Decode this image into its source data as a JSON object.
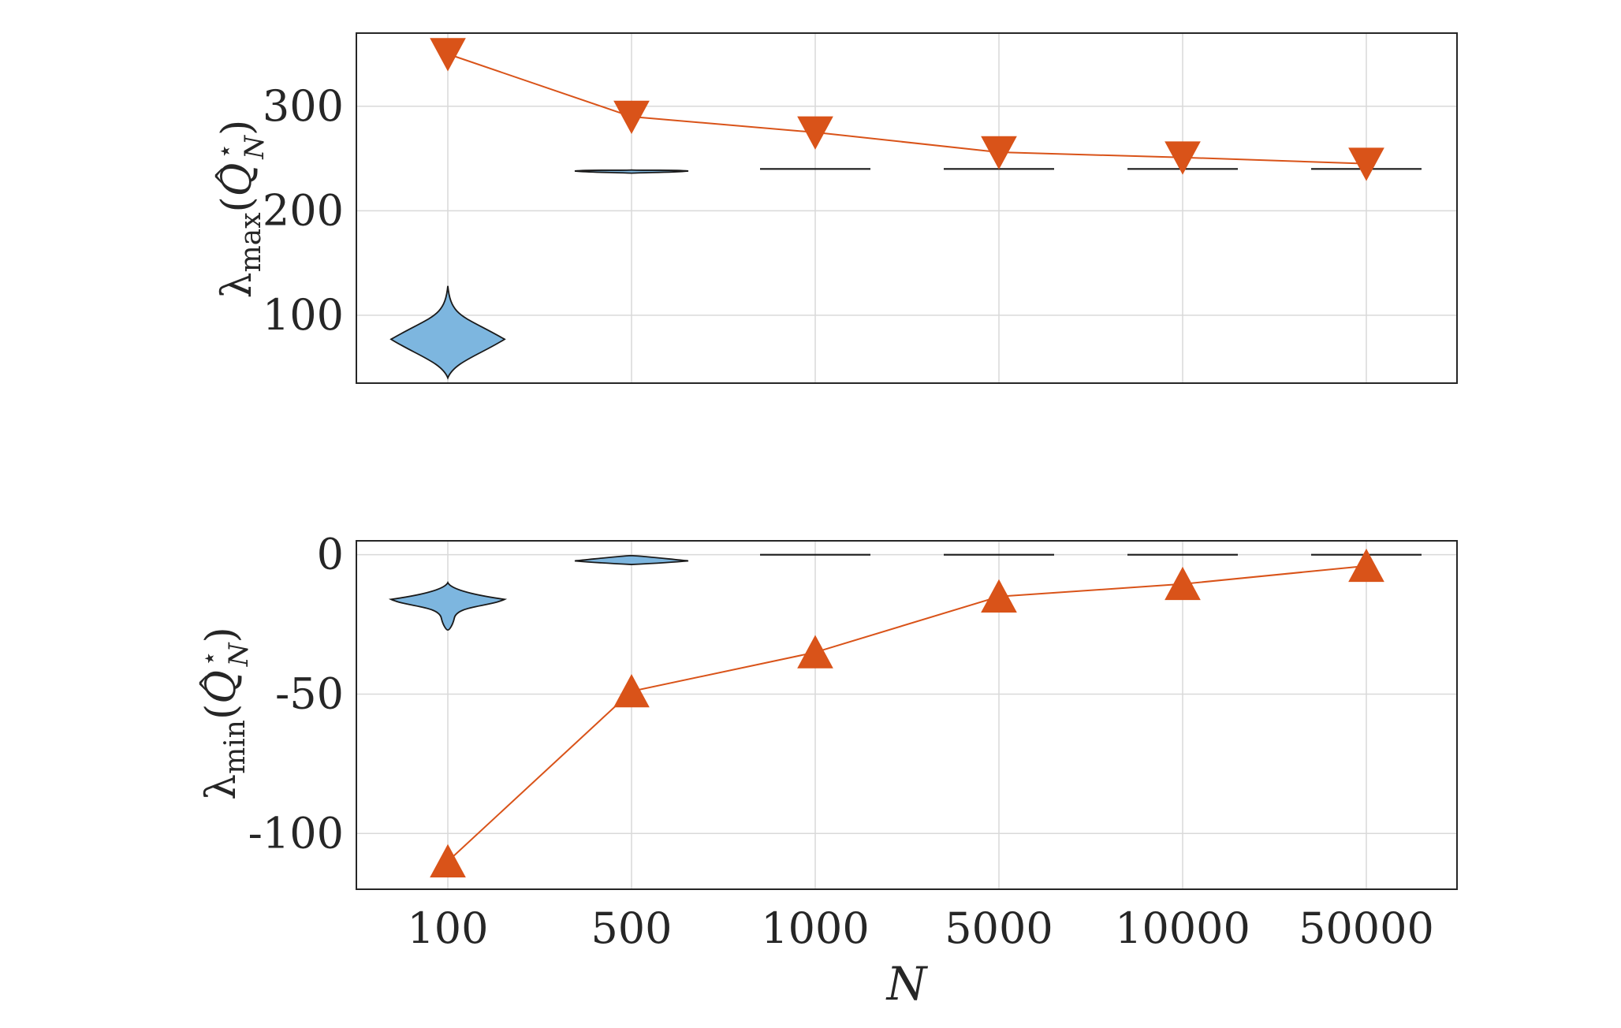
{
  "chart_data": [
    {
      "panel": "top",
      "type": "violin",
      "ylabel": {
        "base": "λ",
        "sub": "max",
        "arg_open": "(",
        "arg_var": "Q",
        "arg_hat": "^",
        "arg_sup": "⋆",
        "arg_sub": "N",
        "arg_close": ")"
      },
      "xlabel": "",
      "categories": [
        "100",
        "500",
        "1000",
        "5000",
        "10000",
        "50000"
      ],
      "ylim": [
        35,
        370
      ],
      "yticks": [
        100,
        200,
        300
      ],
      "ytick_labels": [
        "100",
        "200",
        "300"
      ],
      "grid": true,
      "violins": [
        {
          "category": "100",
          "min": 40,
          "max": 128,
          "mode": 77,
          "flat": false
        },
        {
          "category": "500",
          "min": 236,
          "max": 239,
          "mode": 238,
          "flat": false
        },
        {
          "category": "1000",
          "value": 240,
          "flat": true
        },
        {
          "category": "5000",
          "value": 240,
          "flat": true
        },
        {
          "category": "10000",
          "value": 240,
          "flat": true
        },
        {
          "category": "50000",
          "value": 240,
          "flat": true
        }
      ],
      "series": [
        {
          "marker": "triangle-down",
          "values": [
            350,
            290,
            275,
            256,
            251,
            245
          ]
        }
      ]
    },
    {
      "panel": "bottom",
      "type": "violin",
      "ylabel": {
        "base": "λ",
        "sub": "min",
        "arg_open": "(",
        "arg_var": "Q",
        "arg_hat": "^",
        "arg_sup": "⋆",
        "arg_sub": "N",
        "arg_close": ")"
      },
      "xlabel": "N",
      "categories": [
        "100",
        "500",
        "1000",
        "5000",
        "10000",
        "50000"
      ],
      "ylim": [
        -120,
        5
      ],
      "yticks": [
        0,
        -50,
        -100
      ],
      "ytick_labels": [
        "0",
        "-50",
        "-100"
      ],
      "grid": true,
      "violins": [
        {
          "category": "100",
          "min": -27,
          "max": -10,
          "mode": -16,
          "flat": false
        },
        {
          "category": "500",
          "min": -3.5,
          "max": -0.3,
          "mode": -2.2,
          "flat": false
        },
        {
          "category": "1000",
          "value": 0,
          "flat": true
        },
        {
          "category": "5000",
          "value": 0,
          "flat": true
        },
        {
          "category": "10000",
          "value": 0,
          "flat": true
        },
        {
          "category": "50000",
          "value": 0,
          "flat": true
        }
      ],
      "series": [
        {
          "marker": "triangle-up",
          "values": [
            -110,
            -49,
            -35,
            -15,
            -10.5,
            -4
          ]
        }
      ]
    }
  ],
  "colors": {
    "violin_fill": "#7db6df",
    "bound_series": "#d95319",
    "grid": "#d9d9d9",
    "axes": "#262626"
  }
}
